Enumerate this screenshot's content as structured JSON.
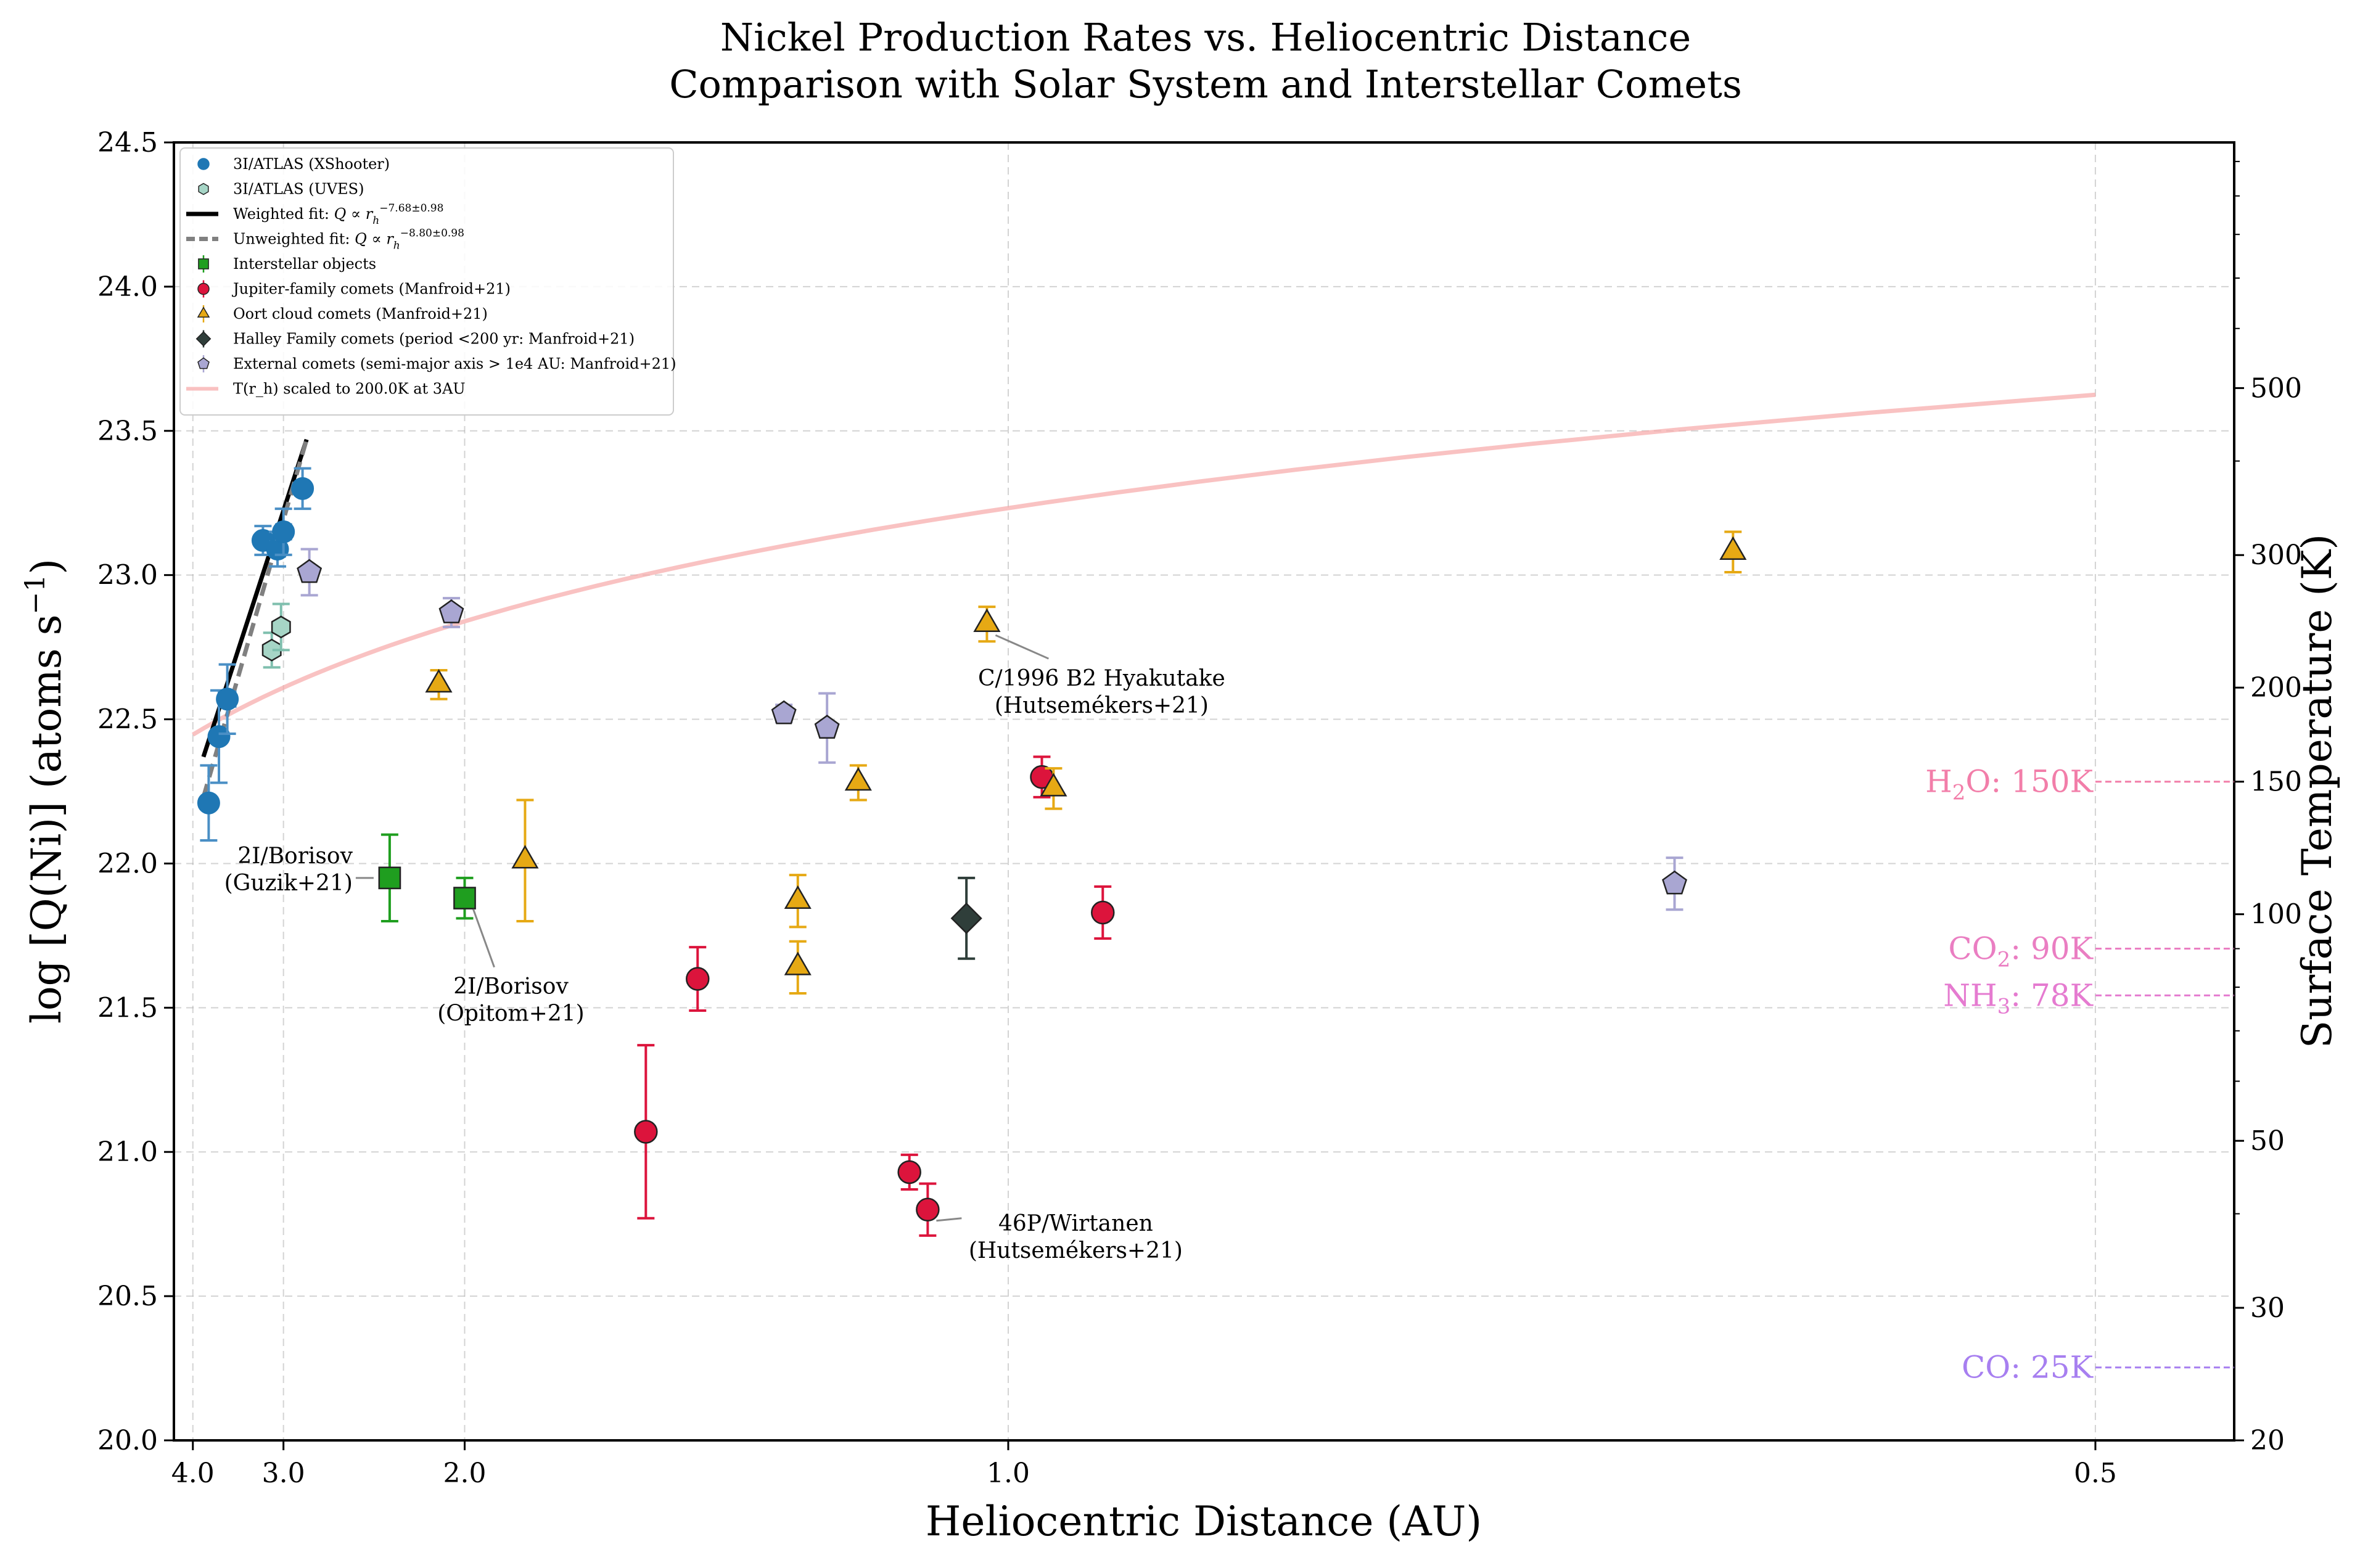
{
  "chart_data": {
    "type": "scatter",
    "title": "Nickel Production Rates vs. Heliocentric Distance",
    "subtitle": "Comparison with Solar System and Interstellar Comets",
    "xlabel": "Heliocentric Distance (AU)",
    "ylabel_main": "log [Q(Ni)] (atoms s",
    "ylabel_sup": "−1",
    "ylabel_close": ")",
    "ylabel_right": "Surface Temperature (K)",
    "x_scale": "reciprocal",
    "xlim": [
      4.3,
      0.47
    ],
    "ylim": [
      20.0,
      24.5
    ],
    "xticks": [
      4.0,
      3.0,
      2.0,
      1.0,
      0.5
    ],
    "xtick_labels": [
      "4.0",
      "3.0",
      "2.0",
      "1.0",
      "0.5"
    ],
    "yticks": [
      20.0,
      20.5,
      21.0,
      21.5,
      22.0,
      22.5,
      23.0,
      23.5,
      24.0,
      24.5
    ],
    "ytick_labels": [
      "20.0",
      "20.5",
      "21.0",
      "21.5",
      "22.0",
      "22.5",
      "23.0",
      "23.5",
      "24.0",
      "24.5"
    ],
    "right_axis": {
      "scale": "log",
      "ylim": [
        20,
        1060
      ],
      "ticks": [
        20,
        30,
        50,
        100,
        150,
        200,
        300,
        500
      ],
      "tick_labels": [
        "20",
        "30",
        "50",
        "100",
        "150",
        "200",
        "300",
        "500"
      ]
    },
    "grid": true,
    "legend_position": "upper-left",
    "colors": {
      "xshooter": "#1f77b4",
      "uves": "#a6d5c6",
      "interstellar": "#1f9e1f",
      "jfc": "#dc143c",
      "oort": "#e6a914",
      "halley": "#2f3e3a",
      "external": "#a9a6d2",
      "weighted_fit": "#000000",
      "unweighted_fit": "#808080",
      "temperature_curve": "#f7a8a8",
      "h2o": "#f27ea9",
      "co2": "#ea7ec2",
      "nh3": "#e57bd0",
      "co": "#a77ff0"
    },
    "legend": [
      {
        "label": "3I/ATLAS (XShooter)",
        "marker": "circle",
        "color_key": "xshooter"
      },
      {
        "label": "3I/ATLAS (UVES)",
        "marker": "hexagon",
        "color_key": "uves"
      },
      {
        "label": "Weighted fit: ",
        "math": "Q ∝ r",
        "sub": "h",
        "sup": "−7.68±0.98",
        "marker": "line",
        "color_key": "weighted_fit"
      },
      {
        "label": "Unweighted fit: ",
        "math": "Q ∝ r",
        "sub": "h",
        "sup": "−8.80±0.98",
        "marker": "dashed",
        "color_key": "unweighted_fit"
      },
      {
        "label": "Interstellar objects",
        "marker": "square",
        "color_key": "interstellar"
      },
      {
        "label": "Jupiter-family comets (Manfroid+21)",
        "marker": "circle-edge",
        "color_key": "jfc"
      },
      {
        "label": "Oort cloud comets (Manfroid+21)",
        "marker": "triangle",
        "color_key": "oort"
      },
      {
        "label": "Halley Family comets (period <200 yr: Manfroid+21)",
        "marker": "diamond",
        "color_key": "halley"
      },
      {
        "label": "External comets (semi-major axis > 1e4 AU: Manfroid+21)",
        "marker": "pentagon",
        "color_key": "external"
      },
      {
        "label": "T(r_h) scaled to 200.0K at 3AU",
        "marker": "line",
        "color_key": "temperature_curve"
      }
    ],
    "series": [
      {
        "key": "xshooter",
        "name": "3I/ATLAS (XShooter)",
        "marker": "circle",
        "points": [
          {
            "x": 3.78,
            "y": 22.21,
            "xerr": 0.05,
            "yerr": 0.13
          },
          {
            "x": 3.65,
            "y": 22.44,
            "xerr": 0.07,
            "yerr": 0.16
          },
          {
            "x": 3.55,
            "y": 22.57,
            "xerr": 0.09,
            "yerr": 0.12
          },
          {
            "x": 3.18,
            "y": 23.12,
            "xerr": 0.05,
            "yerr": 0.05
          },
          {
            "x": 3.05,
            "y": 23.09,
            "xerr": 0.06,
            "yerr": 0.06
          },
          {
            "x": 3.0,
            "y": 23.15,
            "xerr": 0.06,
            "yerr": 0.08
          },
          {
            "x": 2.85,
            "y": 23.3,
            "xerr": 0.04,
            "yerr": 0.07
          }
        ]
      },
      {
        "key": "uves",
        "name": "3I/ATLAS (UVES)",
        "marker": "hexagon",
        "points": [
          {
            "x": 3.1,
            "y": 22.74,
            "yerr": 0.06
          },
          {
            "x": 3.02,
            "y": 22.82,
            "yerr": 0.08
          }
        ]
      },
      {
        "key": "interstellar",
        "name": "Interstellar objects",
        "marker": "square",
        "points": [
          {
            "x": 2.32,
            "y": 21.95,
            "yerr": 0.15
          },
          {
            "x": 2.0,
            "y": 21.88,
            "yerr": 0.07
          }
        ]
      },
      {
        "key": "jfc",
        "name": "Jupiter-family comets (Manfroid+21)",
        "marker": "circle",
        "points": [
          {
            "x": 1.5,
            "y": 21.07,
            "yerr": 0.3
          },
          {
            "x": 1.4,
            "y": 21.6,
            "yerr": 0.11
          },
          {
            "x": 1.1,
            "y": 20.93,
            "yerr": 0.06
          },
          {
            "x": 1.08,
            "y": 20.8,
            "yerr": 0.09
          },
          {
            "x": 0.97,
            "y": 22.3,
            "yerr": 0.07
          },
          {
            "x": 0.92,
            "y": 21.83,
            "yerr": 0.09
          }
        ]
      },
      {
        "key": "oort",
        "name": "Oort cloud comets (Manfroid+21)",
        "marker": "triangle",
        "points": [
          {
            "x": 2.1,
            "y": 22.62,
            "yerr": 0.05
          },
          {
            "x": 1.8,
            "y": 22.01,
            "yerr": 0.21
          },
          {
            "x": 1.24,
            "y": 21.87,
            "yerr": 0.09
          },
          {
            "x": 1.24,
            "y": 21.64,
            "yerr": 0.09
          },
          {
            "x": 1.16,
            "y": 22.28,
            "yerr": 0.06
          },
          {
            "x": 1.02,
            "y": 22.83,
            "yerr": 0.06
          },
          {
            "x": 0.96,
            "y": 22.26,
            "yerr": 0.07
          },
          {
            "x": 0.6,
            "y": 23.08,
            "yerr": 0.07
          }
        ]
      },
      {
        "key": "halley",
        "name": "Halley Family comets (period <200 yr: Manfroid+21)",
        "marker": "diamond",
        "points": [
          {
            "x": 1.04,
            "y": 21.81,
            "yerr": 0.14
          }
        ]
      },
      {
        "key": "external",
        "name": "External comets (semi-major axis > 1e4 AU: Manfroid+21)",
        "marker": "pentagon",
        "points": [
          {
            "x": 2.8,
            "y": 23.01,
            "yerr": 0.08
          },
          {
            "x": 2.05,
            "y": 22.87,
            "yerr": 0.05
          },
          {
            "x": 1.26,
            "y": 22.52,
            "yerr": 0.03
          },
          {
            "x": 1.2,
            "y": 22.47,
            "yerr": 0.12
          },
          {
            "x": 0.62,
            "y": 21.93,
            "yerr": 0.09
          }
        ]
      }
    ],
    "fits": [
      {
        "key": "weighted_fit",
        "style": "solid",
        "x": [
          3.85,
          2.82
        ],
        "y": [
          22.37,
          23.47
        ]
      },
      {
        "key": "unweighted_fit",
        "style": "dashed",
        "x": [
          3.85,
          2.82
        ],
        "y": [
          22.23,
          23.47
        ]
      }
    ],
    "temperature_curve": {
      "key": "temperature_curve",
      "x_start": 4.0,
      "x_end": 0.5,
      "T_ref": 200.0,
      "r_ref": 3.0,
      "exponent": -0.5
    },
    "temperature_markers": [
      {
        "prefix": "H",
        "sub": "2",
        "suffix": "O: 150K",
        "T": 150,
        "color_key": "h2o"
      },
      {
        "prefix": "CO",
        "sub": "2",
        "suffix": ": 90K",
        "T": 90,
        "color_key": "co2"
      },
      {
        "prefix": "NH",
        "sub": "3",
        "suffix": ": 78K",
        "T": 78,
        "color_key": "nh3"
      },
      {
        "prefix": "CO: 25K",
        "sub": "",
        "suffix": "",
        "T": 25,
        "color_key": "co"
      }
    ],
    "annotations": [
      {
        "lines": [
          "2I/Borisov",
          "(Guzik+21)"
        ],
        "x": 2.32,
        "y": 21.95,
        "anchor": "left"
      },
      {
        "lines": [
          "2I/Borisov",
          "(Opitom+21)"
        ],
        "x": 2.0,
        "y": 21.88,
        "anchor": "below"
      },
      {
        "lines": [
          "C/1996 B2 Hyakutake",
          "(Hutsemékers+21)"
        ],
        "x": 1.02,
        "y": 22.83,
        "anchor": "below-right"
      },
      {
        "lines": [
          "46P/Wirtanen",
          "(Hutsemékers+21)"
        ],
        "x": 1.08,
        "y": 20.8,
        "anchor": "right"
      }
    ]
  }
}
